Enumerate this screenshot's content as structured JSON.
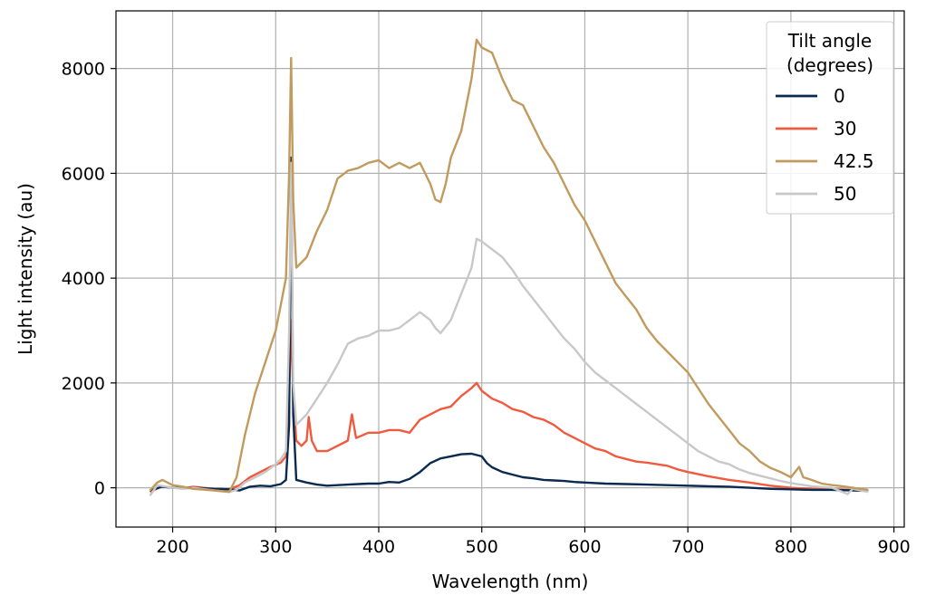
{
  "chart_data": {
    "type": "line",
    "xlabel": "Wavelength (nm)",
    "ylabel": "Light intensity (au)",
    "xlim": [
      145,
      910
    ],
    "ylim": [
      -750,
      9100
    ],
    "xticks": [
      200,
      300,
      400,
      500,
      600,
      700,
      800,
      900
    ],
    "yticks": [
      0,
      2000,
      4000,
      6000,
      8000
    ],
    "grid": true,
    "legend": {
      "title": "Tilt angle\n(degrees)",
      "title_lines": [
        "Tilt angle",
        "(degrees)"
      ],
      "placement": "top-right"
    },
    "series": [
      {
        "name": "0",
        "color": "#0b2a4f",
        "points": [
          [
            178,
            -50
          ],
          [
            190,
            20
          ],
          [
            200,
            0
          ],
          [
            220,
            0
          ],
          [
            240,
            -20
          ],
          [
            255,
            -30
          ],
          [
            265,
            -50
          ],
          [
            275,
            20
          ],
          [
            285,
            40
          ],
          [
            295,
            30
          ],
          [
            305,
            70
          ],
          [
            310,
            150
          ],
          [
            313,
            1200
          ],
          [
            315,
            6300
          ],
          [
            317,
            1400
          ],
          [
            320,
            150
          ],
          [
            330,
            100
          ],
          [
            340,
            60
          ],
          [
            350,
            40
          ],
          [
            360,
            50
          ],
          [
            370,
            60
          ],
          [
            380,
            70
          ],
          [
            390,
            80
          ],
          [
            400,
            80
          ],
          [
            410,
            110
          ],
          [
            420,
            100
          ],
          [
            430,
            170
          ],
          [
            440,
            300
          ],
          [
            450,
            470
          ],
          [
            460,
            560
          ],
          [
            470,
            600
          ],
          [
            480,
            640
          ],
          [
            490,
            650
          ],
          [
            500,
            600
          ],
          [
            505,
            470
          ],
          [
            510,
            390
          ],
          [
            520,
            300
          ],
          [
            530,
            250
          ],
          [
            540,
            200
          ],
          [
            550,
            180
          ],
          [
            560,
            150
          ],
          [
            570,
            140
          ],
          [
            580,
            130
          ],
          [
            590,
            110
          ],
          [
            600,
            100
          ],
          [
            620,
            80
          ],
          [
            640,
            70
          ],
          [
            660,
            60
          ],
          [
            680,
            50
          ],
          [
            700,
            40
          ],
          [
            720,
            30
          ],
          [
            740,
            20
          ],
          [
            760,
            0
          ],
          [
            780,
            -20
          ],
          [
            800,
            -30
          ],
          [
            820,
            -40
          ],
          [
            840,
            -40
          ],
          [
            860,
            -50
          ],
          [
            875,
            -60
          ]
        ]
      },
      {
        "name": "30",
        "color": "#f05a3e",
        "points": [
          [
            178,
            -80
          ],
          [
            190,
            30
          ],
          [
            200,
            0
          ],
          [
            210,
            -10
          ],
          [
            220,
            20
          ],
          [
            240,
            -20
          ],
          [
            255,
            -30
          ],
          [
            265,
            50
          ],
          [
            275,
            200
          ],
          [
            285,
            300
          ],
          [
            295,
            400
          ],
          [
            305,
            480
          ],
          [
            310,
            600
          ],
          [
            313,
            1800
          ],
          [
            315,
            3200
          ],
          [
            317,
            1800
          ],
          [
            320,
            900
          ],
          [
            325,
            800
          ],
          [
            330,
            900
          ],
          [
            332,
            1350
          ],
          [
            335,
            900
          ],
          [
            340,
            700
          ],
          [
            350,
            700
          ],
          [
            360,
            800
          ],
          [
            370,
            900
          ],
          [
            374,
            1400
          ],
          [
            378,
            950
          ],
          [
            390,
            1050
          ],
          [
            400,
            1050
          ],
          [
            410,
            1100
          ],
          [
            420,
            1100
          ],
          [
            430,
            1050
          ],
          [
            440,
            1300
          ],
          [
            450,
            1400
          ],
          [
            460,
            1500
          ],
          [
            470,
            1550
          ],
          [
            480,
            1750
          ],
          [
            490,
            1900
          ],
          [
            495,
            2000
          ],
          [
            500,
            1850
          ],
          [
            510,
            1700
          ],
          [
            520,
            1620
          ],
          [
            530,
            1500
          ],
          [
            540,
            1450
          ],
          [
            550,
            1350
          ],
          [
            560,
            1300
          ],
          [
            570,
            1200
          ],
          [
            580,
            1050
          ],
          [
            590,
            950
          ],
          [
            600,
            850
          ],
          [
            610,
            750
          ],
          [
            620,
            700
          ],
          [
            630,
            600
          ],
          [
            640,
            550
          ],
          [
            650,
            500
          ],
          [
            660,
            480
          ],
          [
            670,
            450
          ],
          [
            680,
            420
          ],
          [
            690,
            350
          ],
          [
            700,
            300
          ],
          [
            720,
            220
          ],
          [
            740,
            150
          ],
          [
            760,
            100
          ],
          [
            780,
            40
          ],
          [
            800,
            0
          ],
          [
            820,
            -20
          ],
          [
            840,
            -30
          ],
          [
            860,
            -40
          ],
          [
            875,
            -60
          ]
        ]
      },
      {
        "name": "42.5",
        "color": "#c19a5d",
        "points": [
          [
            178,
            -50
          ],
          [
            185,
            100
          ],
          [
            190,
            150
          ],
          [
            200,
            50
          ],
          [
            210,
            20
          ],
          [
            220,
            -20
          ],
          [
            240,
            -50
          ],
          [
            255,
            -80
          ],
          [
            262,
            200
          ],
          [
            270,
            1000
          ],
          [
            280,
            1800
          ],
          [
            290,
            2400
          ],
          [
            300,
            3000
          ],
          [
            305,
            3500
          ],
          [
            310,
            4000
          ],
          [
            313,
            6000
          ],
          [
            315,
            8200
          ],
          [
            317,
            5500
          ],
          [
            320,
            4200
          ],
          [
            330,
            4400
          ],
          [
            340,
            4900
          ],
          [
            350,
            5300
          ],
          [
            360,
            5900
          ],
          [
            370,
            6050
          ],
          [
            380,
            6100
          ],
          [
            390,
            6200
          ],
          [
            400,
            6250
          ],
          [
            410,
            6100
          ],
          [
            420,
            6200
          ],
          [
            430,
            6100
          ],
          [
            440,
            6200
          ],
          [
            445,
            6000
          ],
          [
            450,
            5800
          ],
          [
            455,
            5500
          ],
          [
            460,
            5450
          ],
          [
            465,
            5800
          ],
          [
            470,
            6300
          ],
          [
            480,
            6800
          ],
          [
            490,
            7800
          ],
          [
            495,
            8550
          ],
          [
            500,
            8400
          ],
          [
            510,
            8300
          ],
          [
            520,
            7800
          ],
          [
            530,
            7400
          ],
          [
            540,
            7300
          ],
          [
            550,
            6900
          ],
          [
            560,
            6500
          ],
          [
            570,
            6200
          ],
          [
            580,
            5800
          ],
          [
            590,
            5400
          ],
          [
            600,
            5100
          ],
          [
            610,
            4700
          ],
          [
            620,
            4300
          ],
          [
            630,
            3900
          ],
          [
            640,
            3650
          ],
          [
            650,
            3400
          ],
          [
            660,
            3050
          ],
          [
            670,
            2800
          ],
          [
            680,
            2600
          ],
          [
            690,
            2400
          ],
          [
            700,
            2200
          ],
          [
            710,
            1900
          ],
          [
            720,
            1600
          ],
          [
            730,
            1350
          ],
          [
            740,
            1100
          ],
          [
            750,
            850
          ],
          [
            760,
            700
          ],
          [
            770,
            500
          ],
          [
            780,
            380
          ],
          [
            790,
            300
          ],
          [
            800,
            200
          ],
          [
            808,
            400
          ],
          [
            812,
            200
          ],
          [
            820,
            150
          ],
          [
            830,
            80
          ],
          [
            840,
            50
          ],
          [
            850,
            30
          ],
          [
            860,
            0
          ],
          [
            875,
            -40
          ]
        ]
      },
      {
        "name": "50",
        "color": "#c8c8c8",
        "points": [
          [
            178,
            -150
          ],
          [
            185,
            50
          ],
          [
            200,
            0
          ],
          [
            210,
            -20
          ],
          [
            220,
            0
          ],
          [
            240,
            -50
          ],
          [
            255,
            -80
          ],
          [
            262,
            -40
          ],
          [
            270,
            100
          ],
          [
            280,
            200
          ],
          [
            290,
            300
          ],
          [
            300,
            450
          ],
          [
            305,
            550
          ],
          [
            310,
            700
          ],
          [
            313,
            3000
          ],
          [
            315,
            6200
          ],
          [
            317,
            2000
          ],
          [
            320,
            1200
          ],
          [
            330,
            1400
          ],
          [
            340,
            1700
          ],
          [
            350,
            2000
          ],
          [
            360,
            2350
          ],
          [
            370,
            2750
          ],
          [
            380,
            2850
          ],
          [
            390,
            2900
          ],
          [
            400,
            3000
          ],
          [
            410,
            3000
          ],
          [
            420,
            3050
          ],
          [
            430,
            3200
          ],
          [
            440,
            3350
          ],
          [
            450,
            3200
          ],
          [
            455,
            3050
          ],
          [
            460,
            2950
          ],
          [
            470,
            3200
          ],
          [
            480,
            3700
          ],
          [
            490,
            4200
          ],
          [
            495,
            4750
          ],
          [
            500,
            4700
          ],
          [
            510,
            4550
          ],
          [
            520,
            4400
          ],
          [
            530,
            4150
          ],
          [
            540,
            3850
          ],
          [
            550,
            3600
          ],
          [
            560,
            3350
          ],
          [
            570,
            3100
          ],
          [
            580,
            2850
          ],
          [
            590,
            2650
          ],
          [
            600,
            2400
          ],
          [
            610,
            2200
          ],
          [
            620,
            2050
          ],
          [
            630,
            1900
          ],
          [
            640,
            1750
          ],
          [
            650,
            1600
          ],
          [
            660,
            1450
          ],
          [
            670,
            1300
          ],
          [
            680,
            1150
          ],
          [
            690,
            1000
          ],
          [
            700,
            850
          ],
          [
            710,
            700
          ],
          [
            720,
            600
          ],
          [
            730,
            500
          ],
          [
            740,
            450
          ],
          [
            750,
            350
          ],
          [
            760,
            280
          ],
          [
            770,
            230
          ],
          [
            780,
            180
          ],
          [
            790,
            130
          ],
          [
            800,
            90
          ],
          [
            820,
            30
          ],
          [
            840,
            0
          ],
          [
            855,
            -120
          ],
          [
            860,
            -20
          ],
          [
            875,
            -80
          ]
        ]
      }
    ]
  }
}
